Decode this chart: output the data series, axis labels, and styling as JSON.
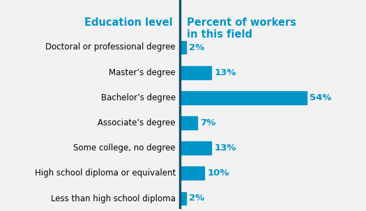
{
  "categories": [
    "Less than high school diploma",
    "High school diploma or equivalent",
    "Some college, no degree",
    "Associate’s degree",
    "Bachelor’s degree",
    "Master’s degree",
    "Doctoral or professional degree"
  ],
  "values": [
    2,
    10,
    13,
    7,
    54,
    13,
    2
  ],
  "bar_color": "#0095c8",
  "divider_color": "#1c4f6e",
  "label_color": "#0095c8",
  "left_header": "Education level",
  "right_header": "Percent of workers\nin this field",
  "header_color": "#0095c8",
  "background_color": "#f2f2f2",
  "xlim": [
    0,
    62
  ],
  "bar_height": 0.52,
  "cat_label_fontsize": 8.5,
  "header_fontsize": 10.5,
  "value_fontsize": 9.5
}
